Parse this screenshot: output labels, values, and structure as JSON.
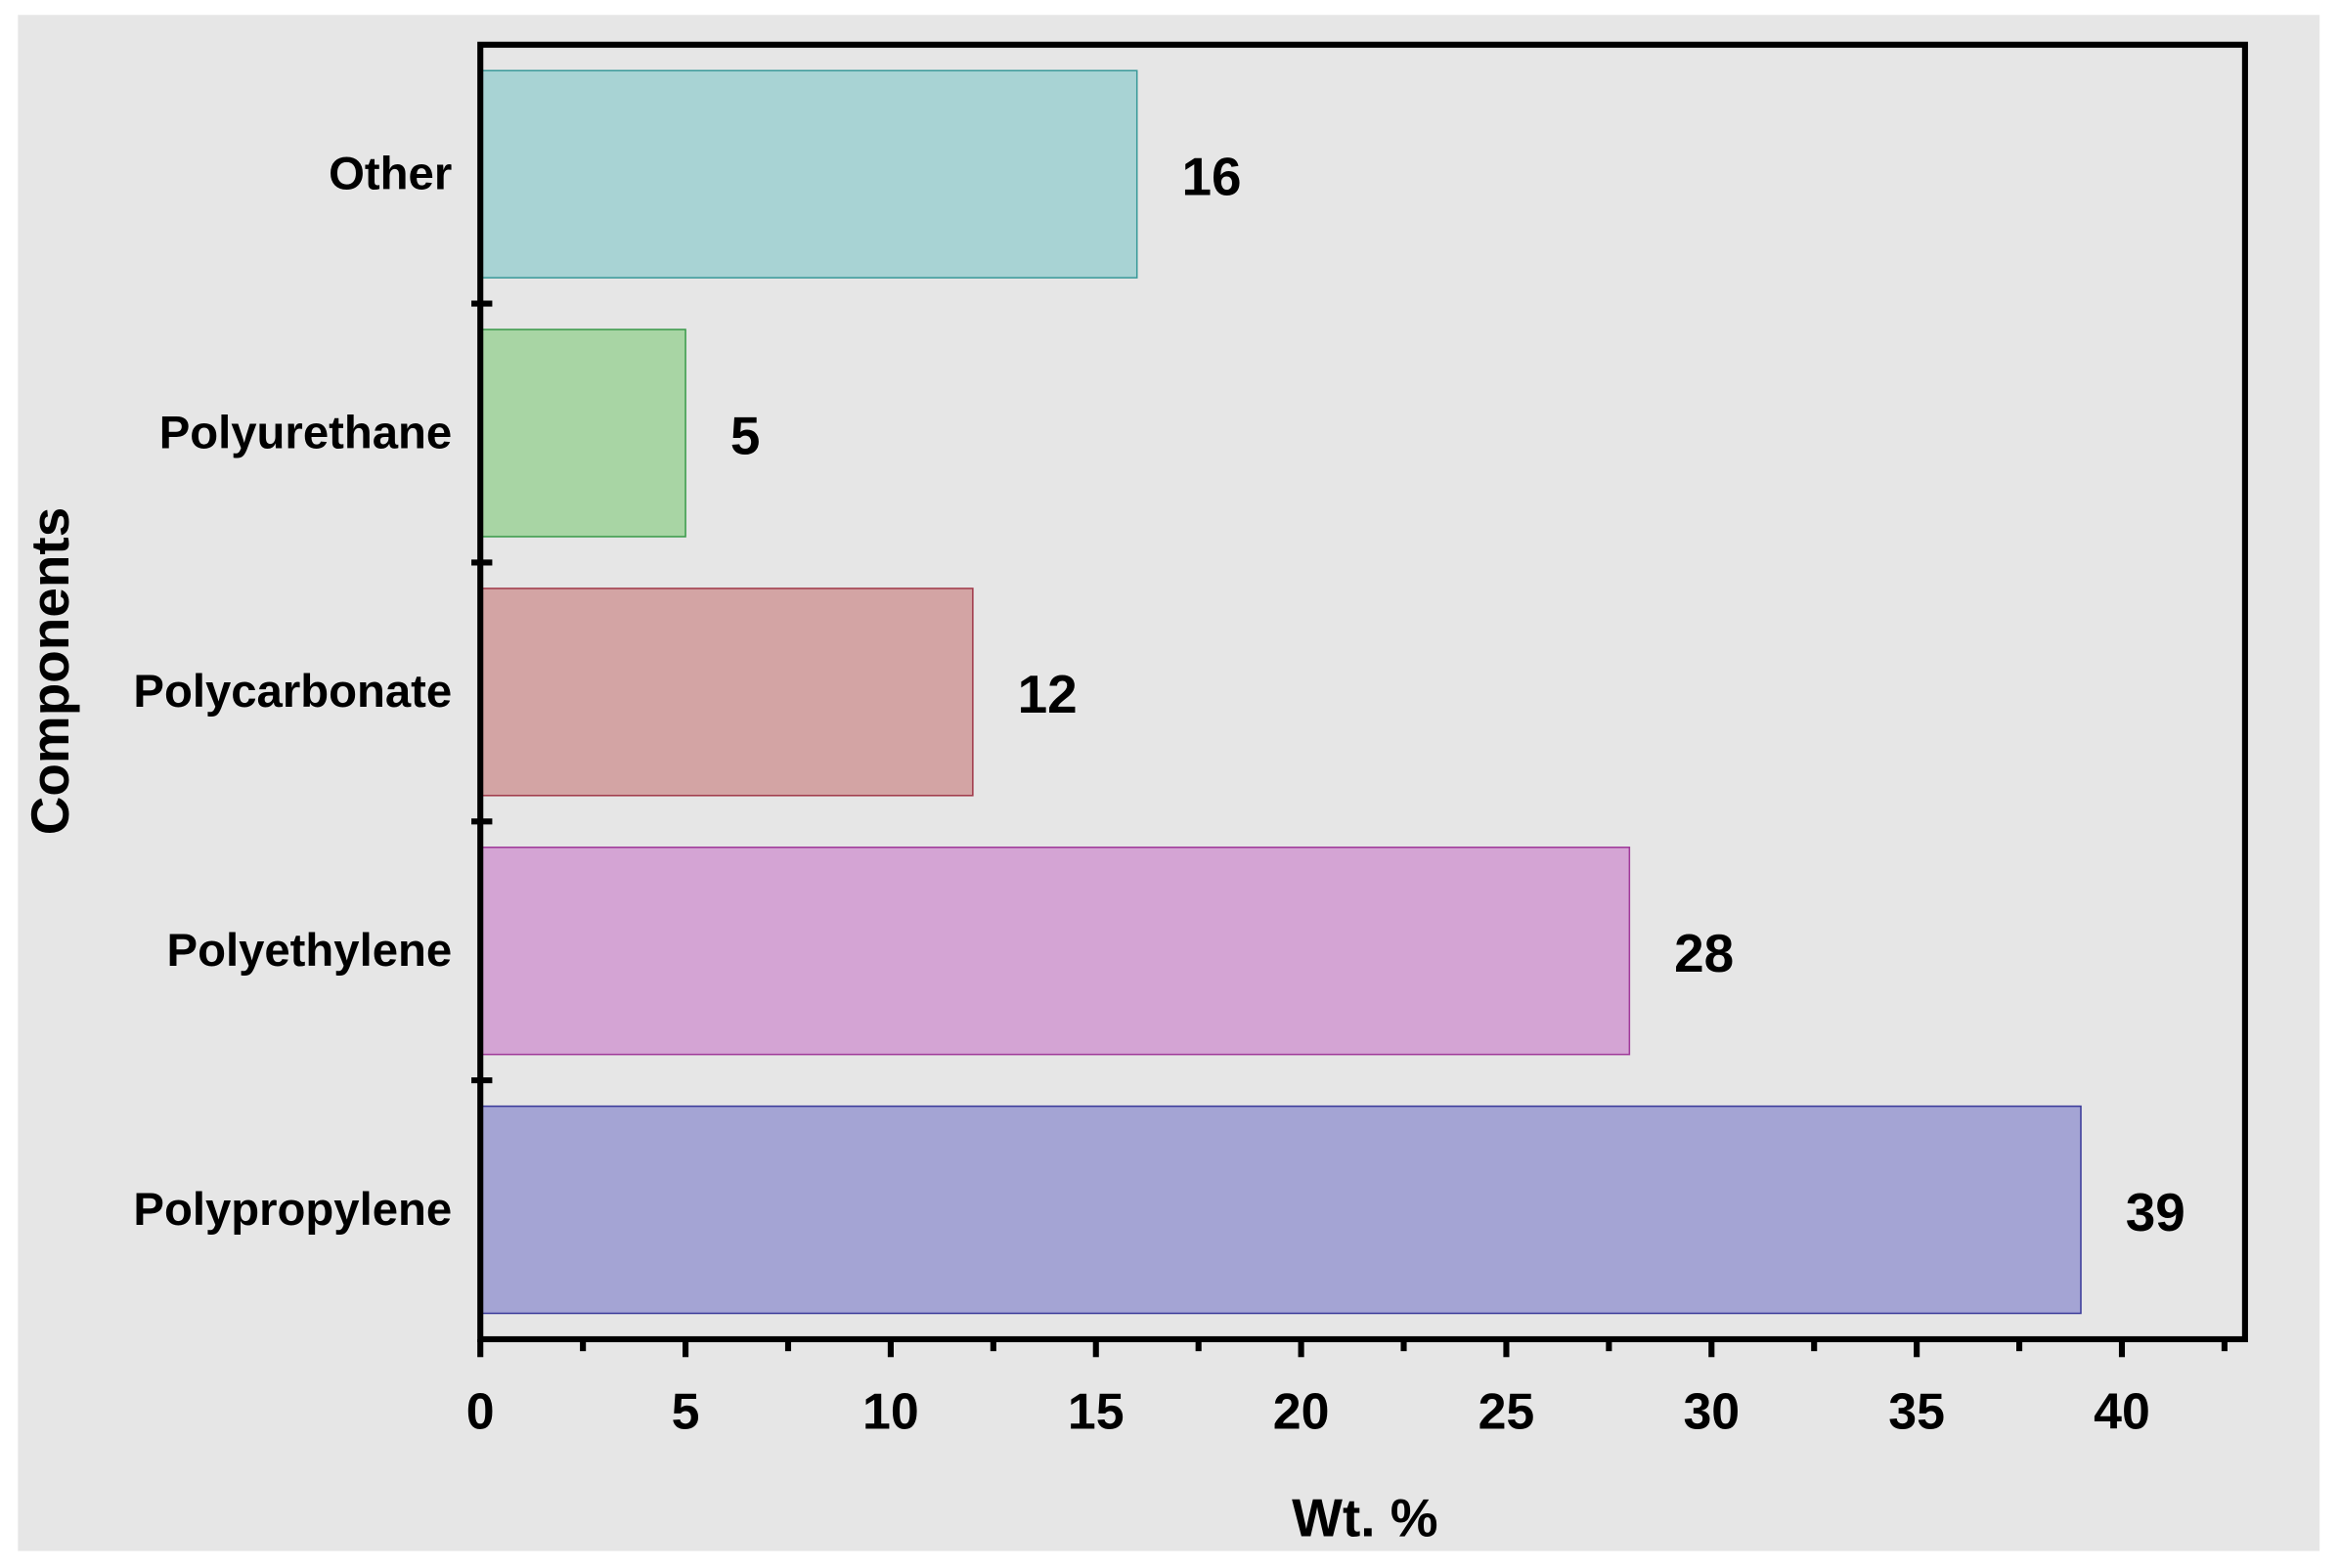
{
  "chart_data": {
    "type": "bar",
    "orientation": "horizontal",
    "xlabel": "Wt. %",
    "ylabel": "Components",
    "categories": [
      "Other",
      "Polyurethane",
      "Polycarbonate",
      "Polyethylene",
      "Polypropylene"
    ],
    "values": [
      16,
      5,
      12,
      28,
      39
    ],
    "colors": [
      "#a8d3d4",
      "#a8d5a4",
      "#d3a4a4",
      "#d4a4d4",
      "#a4a4d4"
    ],
    "edge_colors": [
      "#3a9a9a",
      "#3a9a4a",
      "#a03a4a",
      "#a03a9a",
      "#3a3a9a"
    ],
    "xlim": [
      0,
      43
    ],
    "xticks": [
      0,
      5,
      10,
      15,
      20,
      25,
      30,
      35,
      40
    ],
    "xminorticks": [
      2.5,
      7.5,
      12.5,
      17.5,
      22.5,
      27.5,
      32.5,
      37.5,
      42.5
    ],
    "grid": false
  }
}
